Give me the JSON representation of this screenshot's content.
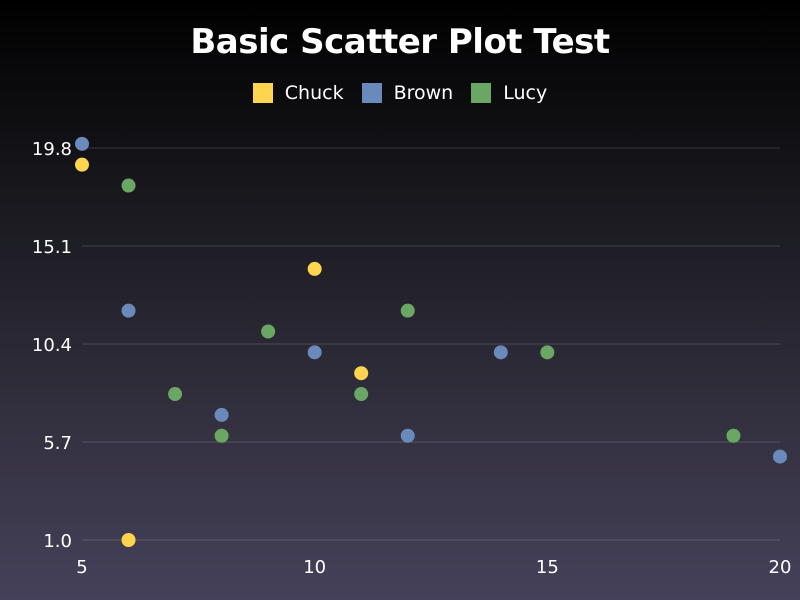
{
  "chart_data": {
    "type": "scatter",
    "title": "Basic Scatter Plot Test",
    "xlabel": "",
    "ylabel": "",
    "xlim": [
      5,
      20
    ],
    "ylim": [
      1.0,
      19.8
    ],
    "x_ticks": [
      "5",
      "10",
      "15",
      "20"
    ],
    "x_tick_values": [
      5,
      10,
      15,
      20
    ],
    "y_ticks": [
      "1.0",
      "5.7",
      "10.4",
      "15.1",
      "19.8"
    ],
    "y_tick_values": [
      1.0,
      5.7,
      10.4,
      15.1,
      19.8
    ],
    "grid": true,
    "legend_position": "top-center",
    "series": [
      {
        "name": "Chuck",
        "color": "#ffd54f",
        "points": [
          [
            5,
            19
          ],
          [
            6,
            1
          ],
          [
            10,
            14
          ],
          [
            11,
            9
          ]
        ]
      },
      {
        "name": "Brown",
        "color": "#6b8abc",
        "points": [
          [
            5,
            20
          ],
          [
            6,
            12
          ],
          [
            8,
            7
          ],
          [
            10,
            10
          ],
          [
            12,
            6
          ],
          [
            14,
            10
          ],
          [
            20,
            5
          ]
        ]
      },
      {
        "name": "Lucy",
        "color": "#6aa765",
        "points": [
          [
            6,
            18
          ],
          [
            7,
            8
          ],
          [
            8,
            6
          ],
          [
            9,
            11
          ],
          [
            11,
            8
          ],
          [
            12,
            12
          ],
          [
            15,
            10
          ],
          [
            19,
            6
          ]
        ]
      }
    ]
  }
}
